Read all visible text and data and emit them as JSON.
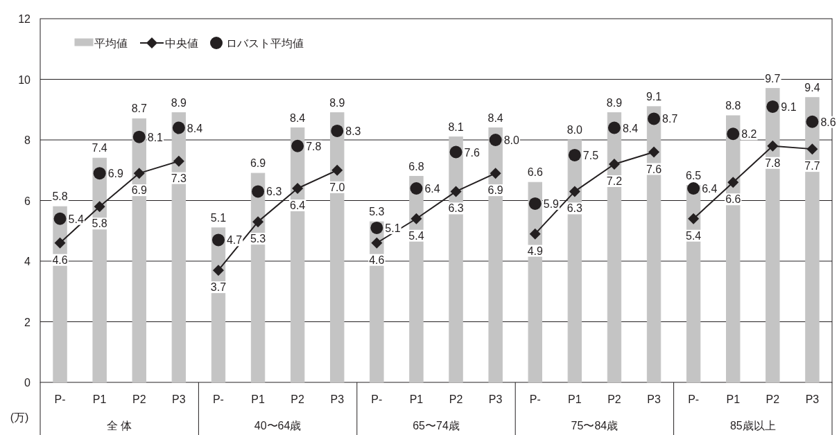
{
  "chart_data": {
    "type": "bar",
    "ylabel": "(万)",
    "categories": [
      "P-",
      "P1",
      "P2",
      "P3",
      "P-",
      "P1",
      "P2",
      "P3",
      "P-",
      "P1",
      "P2",
      "P3",
      "P-",
      "P1",
      "P2",
      "P3",
      "P-",
      "P1",
      "P2",
      "P3"
    ],
    "annotations": [
      "全 体",
      "40〜64歳",
      "65〜74歳",
      "75〜84歳",
      "85歳以上"
    ],
    "series": [
      {
        "name": "平均値",
        "color": "#c4c4c4",
        "values": [
          5.8,
          7.4,
          8.7,
          8.9,
          5.1,
          6.9,
          8.4,
          8.9,
          5.3,
          6.8,
          8.1,
          8.4,
          6.6,
          8.0,
          8.9,
          9.1,
          6.5,
          8.8,
          9.7,
          9.4
        ],
        "value_labels": [
          "5.8",
          "7.4",
          "8.7",
          "8.9",
          "5.1",
          "6.9",
          "8.4",
          "8.9",
          "5.3",
          "6.8",
          "8.1",
          "8.4",
          "6.6",
          "8.0",
          "8.9",
          "9.1",
          "6.5",
          "8.8",
          "9.7",
          "9.4"
        ]
      },
      {
        "name": "中央値",
        "type": "line",
        "color": "#231f20",
        "marker": "diamond",
        "values": [
          4.6,
          5.8,
          6.9,
          7.3,
          null,
          null,
          null,
          null,
          null,
          null,
          null,
          null,
          null,
          null,
          null,
          null,
          null,
          null,
          null,
          null
        ],
        "value_labels": [
          "4.6",
          "5.8",
          "6.9",
          "7.3",
          null,
          null,
          null,
          null,
          null,
          null,
          null,
          null,
          null,
          null,
          null,
          null,
          null,
          null,
          null,
          null
        ]
      },
      {
        "type": "line",
        "color": "#231f20",
        "marker": "diamond",
        "values": [
          null,
          null,
          null,
          null,
          3.7,
          5.3,
          6.4,
          7.0,
          null,
          null,
          null,
          null,
          null,
          null,
          null,
          null,
          null,
          null,
          null,
          null
        ],
        "value_labels": [
          null,
          null,
          null,
          null,
          "3.7",
          "5.3",
          "6.4",
          "7.0",
          null,
          null,
          null,
          null,
          null,
          null,
          null,
          null,
          null,
          null,
          null,
          null
        ]
      },
      {
        "type": "line",
        "color": "#231f20",
        "marker": "diamond",
        "values": [
          null,
          null,
          null,
          null,
          null,
          null,
          null,
          null,
          4.6,
          5.4,
          6.3,
          6.9,
          null,
          null,
          null,
          null,
          null,
          null,
          null,
          null
        ],
        "value_labels": [
          null,
          null,
          null,
          null,
          null,
          null,
          null,
          null,
          "4.6",
          "5.4",
          "6.3",
          "6.9",
          null,
          null,
          null,
          null,
          null,
          null,
          null,
          null
        ]
      },
      {
        "type": "line",
        "color": "#231f20",
        "marker": "diamond",
        "values": [
          null,
          null,
          null,
          null,
          null,
          null,
          null,
          null,
          null,
          null,
          null,
          null,
          4.9,
          6.3,
          7.2,
          7.6,
          null,
          null,
          null,
          null
        ],
        "value_labels": [
          null,
          null,
          null,
          null,
          null,
          null,
          null,
          null,
          null,
          null,
          null,
          null,
          "4.9",
          "6.3",
          "7.2",
          "7.6",
          null,
          null,
          null,
          null
        ]
      },
      {
        "type": "line",
        "color": "#231f20",
        "marker": "diamond",
        "values": [
          null,
          null,
          null,
          null,
          null,
          null,
          null,
          null,
          null,
          null,
          null,
          null,
          null,
          null,
          null,
          null,
          5.4,
          6.6,
          7.8,
          7.7
        ],
        "value_labels": [
          null,
          null,
          null,
          null,
          null,
          null,
          null,
          null,
          null,
          null,
          null,
          null,
          null,
          null,
          null,
          null,
          "5.4",
          "6.6",
          "7.8",
          "7.7"
        ]
      },
      {
        "name": "ロバスト平均値",
        "type": "scatter",
        "color": "#231f20",
        "marker": "circle",
        "values": [
          5.4,
          6.9,
          8.1,
          8.4,
          4.7,
          6.3,
          7.8,
          8.3,
          5.1,
          6.4,
          7.6,
          8.0,
          5.9,
          7.5,
          8.4,
          8.7,
          6.4,
          8.2,
          9.1,
          8.6
        ],
        "value_labels": [
          "5.4",
          "6.9",
          "8.1",
          "8.4",
          "4.7",
          "6.3",
          "7.8",
          "8.3",
          "5.1",
          "6.4",
          "7.6",
          "8.0",
          "5.9",
          "7.5",
          "8.4",
          "8.7",
          "6.4",
          "8.2",
          "9.1",
          "8.6"
        ]
      }
    ],
    "ylim": [
      0,
      12
    ],
    "yticks": [
      0,
      2,
      4,
      6,
      8,
      10,
      12
    ],
    "grid": "y",
    "legend": "top left"
  }
}
